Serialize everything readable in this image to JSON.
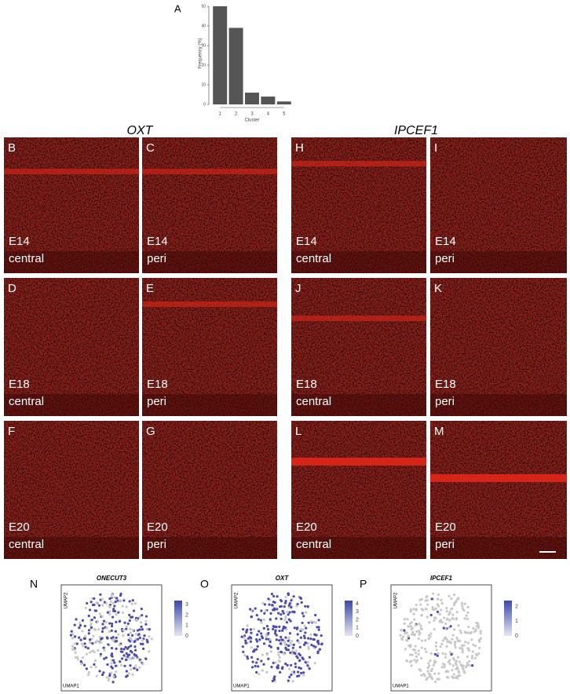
{
  "chart_data": {
    "type": "bar",
    "panel_label": "A",
    "x_label": "Cluster",
    "y_label": "Frequency (%)",
    "categories": [
      "1",
      "2",
      "3",
      "4",
      "5"
    ],
    "values": [
      50,
      39,
      6,
      4,
      1.5
    ],
    "color": "#555555",
    "ylim": [
      0,
      52
    ],
    "yticks": [
      0,
      10,
      20,
      30,
      40,
      50
    ]
  },
  "image_panel": {
    "column_headers": [
      "OXT",
      "IPCEF1"
    ],
    "panels": [
      {
        "label": "B",
        "stage": "E14",
        "region": "central"
      },
      {
        "label": "C",
        "stage": "E14",
        "region": "peri"
      },
      {
        "label": "H",
        "stage": "E14",
        "region": "central"
      },
      {
        "label": "I",
        "stage": "E14",
        "region": "peri"
      },
      {
        "label": "D",
        "stage": "E18",
        "region": "central"
      },
      {
        "label": "E",
        "stage": "E18",
        "region": "peri"
      },
      {
        "label": "J",
        "stage": "E18",
        "region": "central"
      },
      {
        "label": "K",
        "stage": "E18",
        "region": "peri"
      },
      {
        "label": "F",
        "stage": "E20",
        "region": "central"
      },
      {
        "label": "G",
        "stage": "E20",
        "region": "peri"
      },
      {
        "label": "L",
        "stage": "E20",
        "region": "central"
      },
      {
        "label": "M",
        "stage": "E20",
        "region": "peri"
      }
    ]
  },
  "umap": {
    "x_label": "UMAP1",
    "y_label": "UMAP2",
    "plots": [
      {
        "label": "N",
        "title": "ONECUT3",
        "colorbar_ticks": [
          0,
          1,
          2,
          3
        ]
      },
      {
        "label": "O",
        "title": "OXT",
        "colorbar_ticks": [
          0,
          1,
          2,
          3,
          4
        ]
      },
      {
        "label": "P",
        "title": "IPCEF1",
        "colorbar_ticks": [
          0,
          1,
          2
        ]
      }
    ]
  }
}
